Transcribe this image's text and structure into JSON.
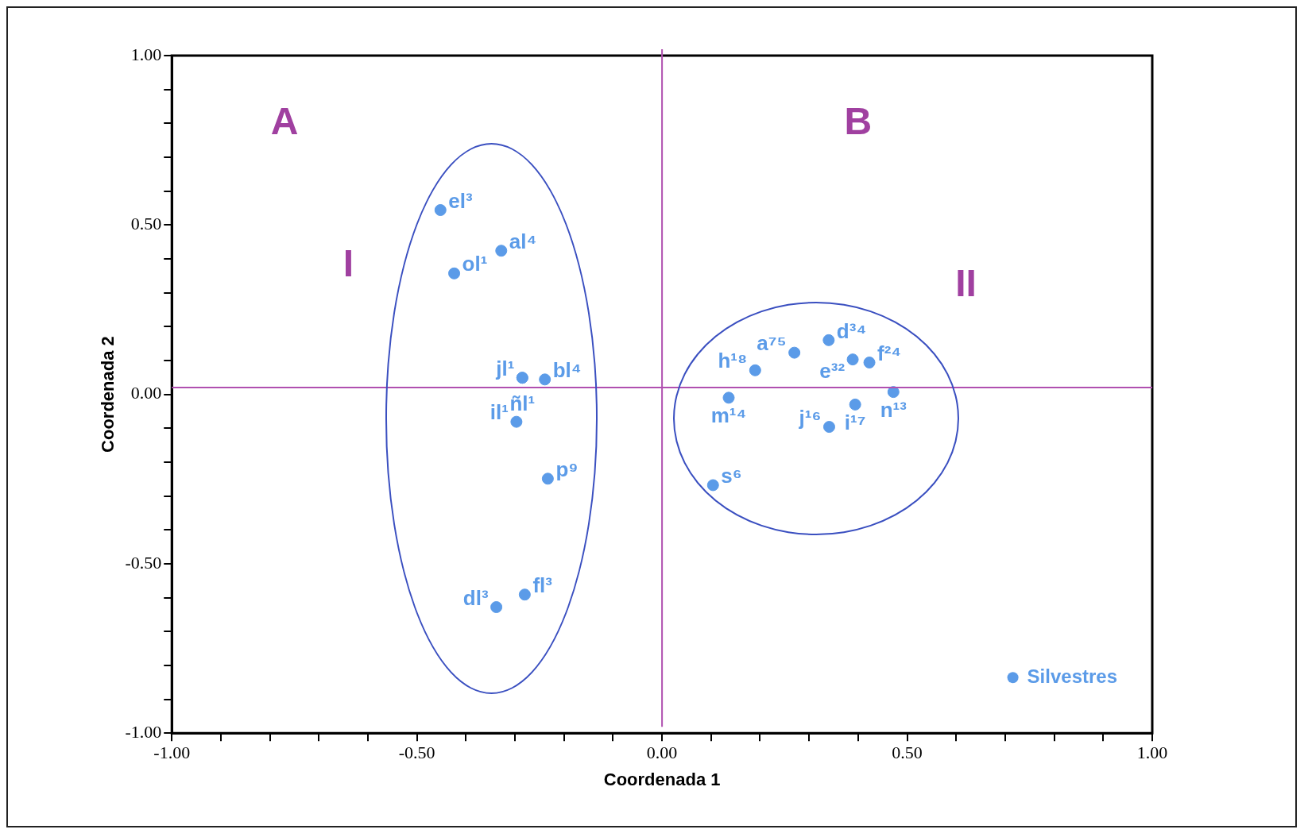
{
  "chart_data": {
    "type": "scatter",
    "xlabel": "Coordenada 1",
    "ylabel": "Coordenada 2",
    "xlim": [
      -1,
      1
    ],
    "ylim": [
      -1,
      1
    ],
    "xticks": [
      {
        "value": -1,
        "label": "-1.00"
      },
      {
        "value": -0.9,
        "label": null
      },
      {
        "value": -0.8,
        "label": null
      },
      {
        "value": -0.7,
        "label": null
      },
      {
        "value": -0.6,
        "label": null
      },
      {
        "value": -0.5,
        "label": "-0.50"
      },
      {
        "value": -0.4,
        "label": null
      },
      {
        "value": -0.3,
        "label": null
      },
      {
        "value": -0.2,
        "label": null
      },
      {
        "value": -0.1,
        "label": null
      },
      {
        "value": 0,
        "label": "0.00"
      },
      {
        "value": 0.1,
        "label": null
      },
      {
        "value": 0.2,
        "label": null
      },
      {
        "value": 0.3,
        "label": null
      },
      {
        "value": 0.4,
        "label": null
      },
      {
        "value": 0.5,
        "label": "0.50"
      },
      {
        "value": 0.6,
        "label": null
      },
      {
        "value": 0.7,
        "label": null
      },
      {
        "value": 0.8,
        "label": null
      },
      {
        "value": 0.9,
        "label": null
      },
      {
        "value": 1,
        "label": "1.00"
      }
    ],
    "yticks": [
      {
        "value": -1,
        "label": "-1.00"
      },
      {
        "value": -0.9,
        "label": null
      },
      {
        "value": -0.8,
        "label": null
      },
      {
        "value": -0.7,
        "label": null
      },
      {
        "value": -0.6,
        "label": null
      },
      {
        "value": -0.5,
        "label": "-0.50"
      },
      {
        "value": -0.4,
        "label": null
      },
      {
        "value": -0.3,
        "label": null
      },
      {
        "value": -0.2,
        "label": null
      },
      {
        "value": -0.1,
        "label": null
      },
      {
        "value": 0,
        "label": "0.00"
      },
      {
        "value": 0.1,
        "label": null
      },
      {
        "value": 0.2,
        "label": null
      },
      {
        "value": 0.3,
        "label": null
      },
      {
        "value": 0.4,
        "label": null
      },
      {
        "value": 0.5,
        "label": "0.50"
      },
      {
        "value": 0.6,
        "label": null
      },
      {
        "value": 0.7,
        "label": null
      },
      {
        "value": 0.8,
        "label": null
      },
      {
        "value": 0.9,
        "label": null
      },
      {
        "value": 1,
        "label": "1.00"
      }
    ],
    "grid": false,
    "legend": "bottom right",
    "marker": "circle",
    "series": [
      {
        "name": "Silvestres",
        "color": "#5b9be8",
        "x": [
          -0.452,
          -0.328,
          -0.424,
          -0.285,
          -0.285,
          -0.239,
          -0.297,
          -0.233,
          -0.28,
          -0.338,
          0.19,
          0.27,
          0.34,
          0.389,
          0.423,
          0.472,
          0.136,
          0.394,
          0.341,
          0.104
        ],
        "values": [
          0.544,
          0.424,
          0.357,
          0.049,
          0.049,
          0.044,
          -0.081,
          -0.249,
          -0.591,
          -0.628,
          0.071,
          0.123,
          0.16,
          0.103,
          0.094,
          0.007,
          -0.01,
          -0.03,
          -0.096,
          -0.268
        ],
        "value_labels": [
          "el³",
          "al⁴",
          "ol¹",
          "jl¹",
          "ñl¹",
          "bl⁴",
          "il¹",
          "p⁹",
          "fl³",
          "dl³",
          "h¹⁸",
          "a⁷⁵",
          "d³⁴",
          "e³²",
          "f²⁴",
          "n¹³",
          "m¹⁴",
          "i¹⁷",
          "j¹⁶",
          "s⁶"
        ]
      }
    ],
    "ref_lines": [
      {
        "axis": "x",
        "value": 0,
        "color": "#b050b0"
      },
      {
        "axis": "y",
        "value": 0.02,
        "color": "#b050b0"
      }
    ],
    "annotations": [
      "A",
      "B",
      "I",
      "II"
    ]
  }
}
